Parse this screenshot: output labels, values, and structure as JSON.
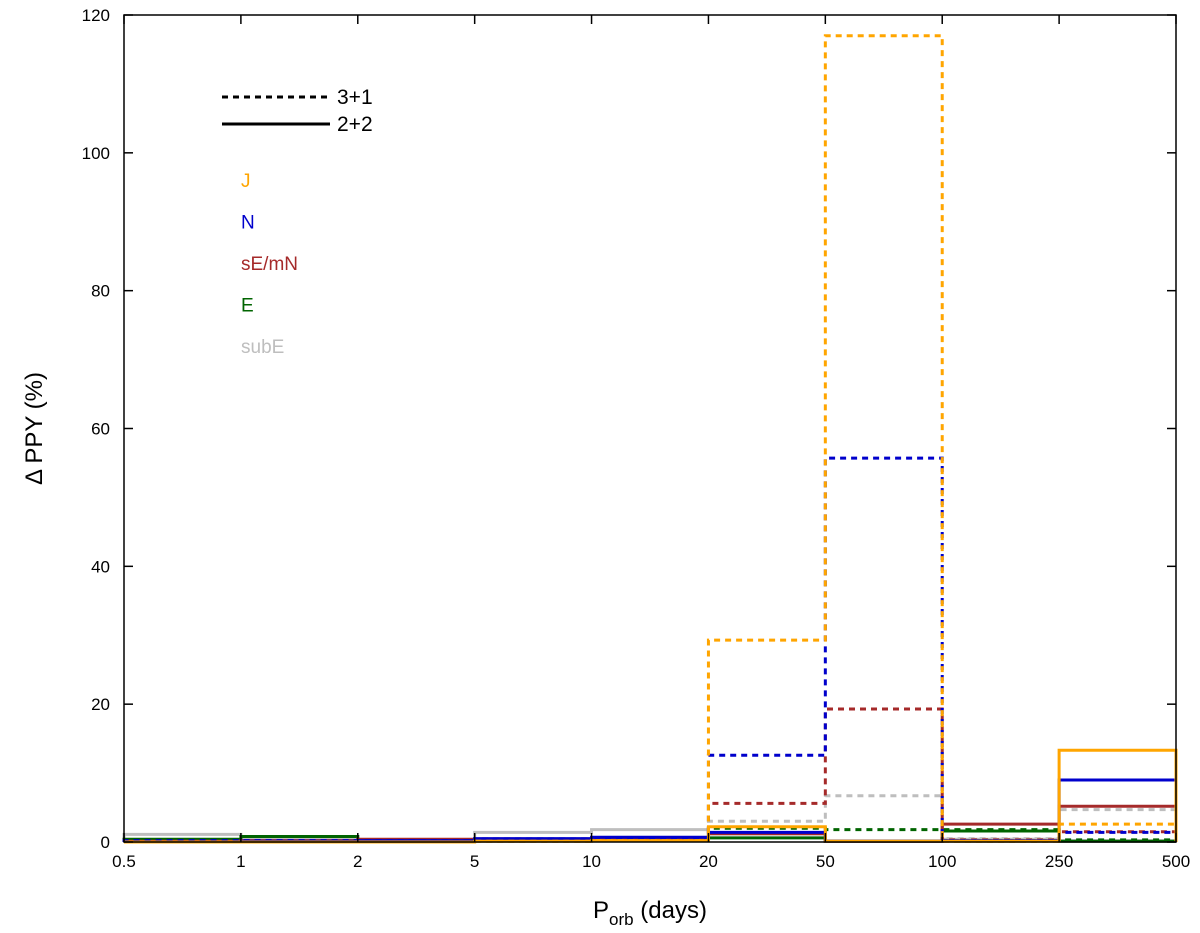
{
  "chart_data": {
    "type": "bar",
    "subtype": "step-histogram",
    "ylabel": "Δ PPY (%)",
    "xlabel_main": "P",
    "xlabel_sub": "orb",
    "xlabel_tail": " (days)",
    "x_bin_edges": [
      "0.5",
      "1",
      "2",
      "5",
      "10",
      "20",
      "50",
      "100",
      "250",
      "500"
    ],
    "ylim": [
      0,
      120
    ],
    "yticks": [
      0,
      20,
      40,
      60,
      80,
      100,
      120
    ],
    "legend_style": [
      {
        "label": "3+1",
        "dash": true
      },
      {
        "label": "2+2",
        "dash": false
      }
    ],
    "legend_categories": [
      {
        "label": "J",
        "color": "#FFA500"
      },
      {
        "label": "N",
        "color": "#0000CC"
      },
      {
        "label": "sE/mN",
        "color": "#A52A2A"
      },
      {
        "label": "E",
        "color": "#006400"
      },
      {
        "label": "subE",
        "color": "#BEBEBE"
      }
    ],
    "series": [
      {
        "category": "subE",
        "style": "3+1",
        "color": "#BEBEBE",
        "dash": true,
        "values": [
          0.3,
          0.2,
          0.2,
          0.5,
          0.5,
          3.0,
          6.7,
          0.5,
          4.7
        ]
      },
      {
        "category": "subE",
        "style": "2+2",
        "color": "#BEBEBE",
        "dash": false,
        "values": [
          1.1,
          0.5,
          0.3,
          1.4,
          1.8,
          1.2,
          0.1,
          0.4,
          0.2
        ]
      },
      {
        "category": "E",
        "style": "3+1",
        "color": "#006400",
        "dash": true,
        "values": [
          0.2,
          0.2,
          0.1,
          0.3,
          0.4,
          2.0,
          1.8,
          1.8,
          0.3
        ]
      },
      {
        "category": "E",
        "style": "2+2",
        "color": "#006400",
        "dash": false,
        "values": [
          0.4,
          0.8,
          0.3,
          0.3,
          0.4,
          0.6,
          0.1,
          1.6,
          0.1
        ]
      },
      {
        "category": "sE/mN",
        "style": "3+1",
        "color": "#A52A2A",
        "dash": true,
        "values": [
          0.1,
          0.1,
          0.1,
          0.2,
          0.4,
          5.6,
          19.3,
          0.3,
          1.5
        ]
      },
      {
        "category": "sE/mN",
        "style": "2+2",
        "color": "#A52A2A",
        "dash": false,
        "values": [
          0.1,
          0.2,
          0.4,
          0.4,
          0.5,
          1.2,
          0.1,
          2.6,
          5.2
        ]
      },
      {
        "category": "N",
        "style": "3+1",
        "color": "#0000CC",
        "dash": true,
        "values": [
          0.2,
          0.2,
          0.2,
          0.4,
          0.4,
          12.6,
          55.7,
          0.2,
          1.4
        ]
      },
      {
        "category": "N",
        "style": "2+2",
        "color": "#0000CC",
        "dash": false,
        "values": [
          0.0,
          0.1,
          0.2,
          0.5,
          0.7,
          1.4,
          0.1,
          0.2,
          9.0
        ]
      },
      {
        "category": "J",
        "style": "3+1",
        "color": "#FFA500",
        "dash": true,
        "values": [
          0.0,
          0.0,
          0.0,
          0.1,
          0.2,
          29.3,
          117.0,
          0.1,
          2.6
        ]
      },
      {
        "category": "J",
        "style": "2+2",
        "color": "#FFA500",
        "dash": false,
        "values": [
          0.0,
          0.0,
          0.0,
          0.1,
          0.2,
          2.2,
          0.1,
          0.1,
          13.3
        ]
      }
    ]
  }
}
